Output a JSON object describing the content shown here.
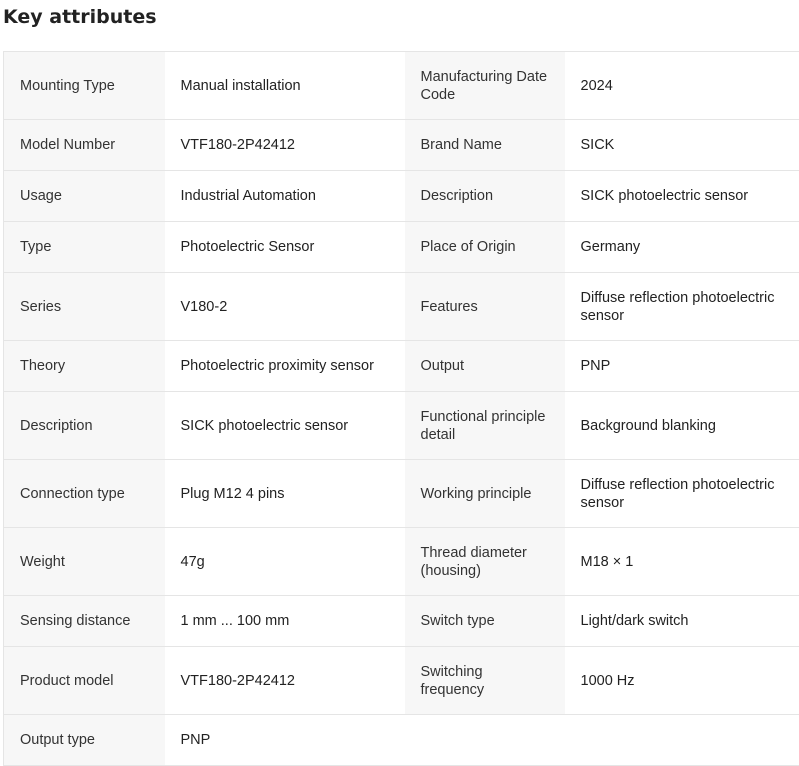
{
  "heading": "Key attributes",
  "rows": [
    [
      {
        "label": "Mounting Type",
        "value": "Manual installation"
      },
      {
        "label": "Manufacturing Date Code",
        "value": "2024"
      }
    ],
    [
      {
        "label": "Model Number",
        "value": "VTF180-2P42412"
      },
      {
        "label": "Brand Name",
        "value": "SICK"
      }
    ],
    [
      {
        "label": "Usage",
        "value": "Industrial Automation"
      },
      {
        "label": "Description",
        "value": "SICK photoelectric sensor"
      }
    ],
    [
      {
        "label": "Type",
        "value": "Photoelectric Sensor"
      },
      {
        "label": "Place of Origin",
        "value": "Germany"
      }
    ],
    [
      {
        "label": "Series",
        "value": "V180-2"
      },
      {
        "label": "Features",
        "value": "Diffuse reflection photoelectric sensor"
      }
    ],
    [
      {
        "label": "Theory",
        "value": "Photoelectric proximity sensor"
      },
      {
        "label": "Output",
        "value": "PNP"
      }
    ],
    [
      {
        "label": "Description",
        "value": "SICK photoelectric sensor"
      },
      {
        "label": "Functional principle detail",
        "value": "Background blanking"
      }
    ],
    [
      {
        "label": "Connection type",
        "value": "Plug M12 4 pins"
      },
      {
        "label": "Working principle",
        "value": "Diffuse reflection photoelectric sensor"
      }
    ],
    [
      {
        "label": "Weight",
        "value": "47g"
      },
      {
        "label": "Thread diameter (housing)",
        "value": "M18 × 1"
      }
    ],
    [
      {
        "label": "Sensing distance",
        "value": "1 mm ... 100 mm"
      },
      {
        "label": "Switch type",
        "value": "Light/dark switch"
      }
    ],
    [
      {
        "label": "Product model",
        "value": "VTF180-2P42412"
      },
      {
        "label": "Switching frequency",
        "value": "1000 Hz"
      }
    ],
    [
      {
        "label": "Output type",
        "value": "PNP"
      }
    ]
  ]
}
